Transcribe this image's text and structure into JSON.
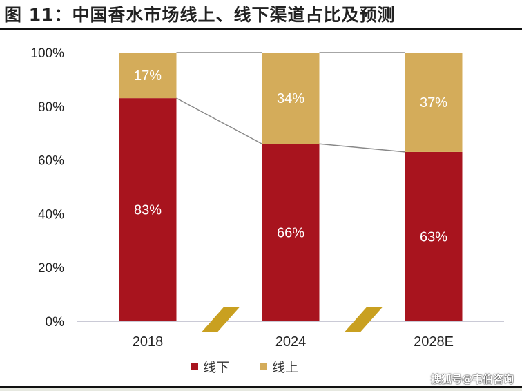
{
  "title": "图 11：中国香水市场线上、线下渠道占比及预测",
  "watermark": "搜狐号@韦伯咨询",
  "chart_data": {
    "type": "bar",
    "stacked": true,
    "categories": [
      "2018",
      "2024",
      "2028E"
    ],
    "series": [
      {
        "name": "线下",
        "values": [
          83,
          66,
          63
        ],
        "labels": [
          "83%",
          "66%",
          "63%"
        ],
        "color": "#A8141E"
      },
      {
        "name": "线上",
        "values": [
          17,
          34,
          37
        ],
        "labels": [
          "17%",
          "34%",
          "37%"
        ],
        "color": "#D4AC5A"
      }
    ],
    "ylim": [
      0,
      100
    ],
    "yticks": [
      0,
      20,
      40,
      60,
      80,
      100
    ],
    "ytick_labels": [
      "0%",
      "20%",
      "40%",
      "60%",
      "80%",
      "100%"
    ],
    "connector_lines": true,
    "axis_break_marks": true,
    "break_color": "#C9A020",
    "legend_position": "bottom-left",
    "grid": false
  }
}
